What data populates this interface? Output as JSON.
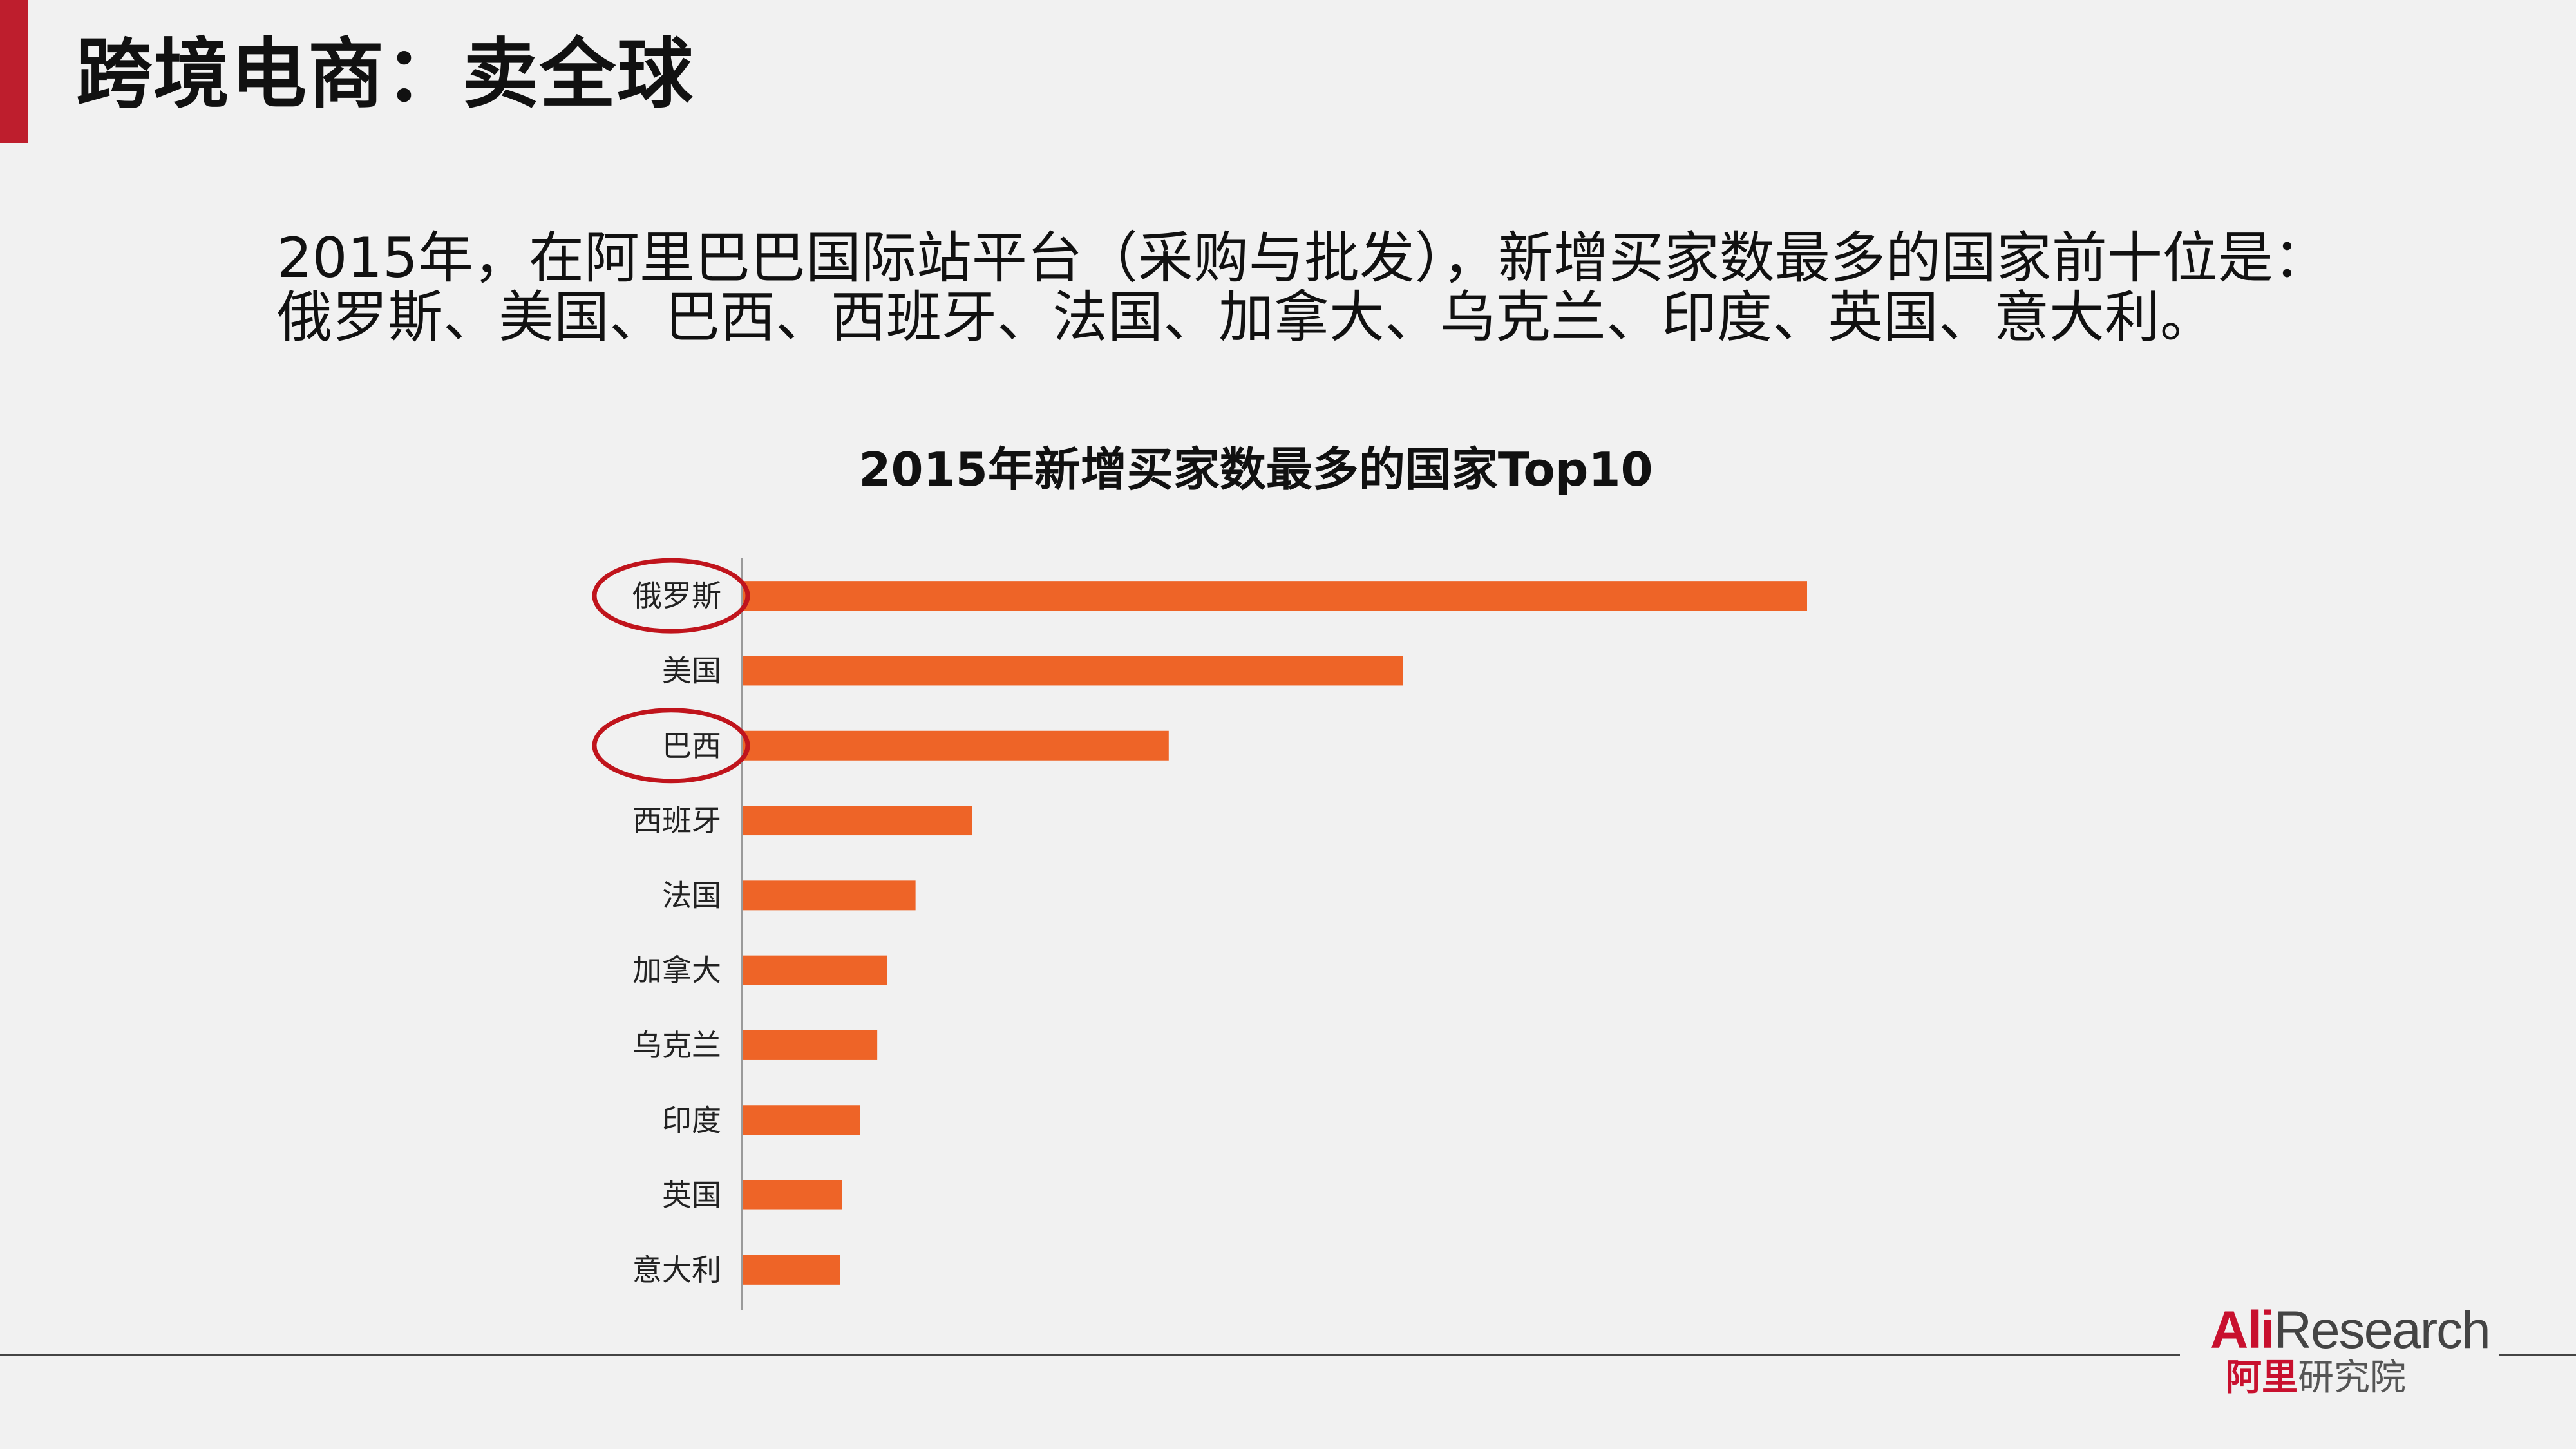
{
  "slide": {
    "title": "跨境电商：卖全球",
    "intro_line1": "2015年，在阿里巴巴国际站平台（采购与批发），新增买家数最多的国家前十位是：",
    "intro_line2": "俄罗斯、美国、巴西、西班牙、法国、加拿大、乌克兰、印度、英国、意大利。"
  },
  "chart_data": {
    "type": "bar",
    "orientation": "horizontal",
    "title": "2015年新增买家数最多的国家Top10",
    "xlabel": "",
    "ylabel": "",
    "categories": [
      "俄罗斯",
      "美国",
      "巴西",
      "西班牙",
      "法国",
      "加拿大",
      "乌克兰",
      "印度",
      "英国",
      "意大利"
    ],
    "values": [
      100,
      62,
      40,
      21.5,
      16.2,
      13.5,
      12.6,
      11,
      9.3,
      9.1
    ],
    "xlim": [
      0,
      100
    ],
    "value_axis_shown": false,
    "grid": false,
    "legend": "none",
    "bar_color": "#ee6427",
    "highlighted_categories": [
      "俄罗斯",
      "巴西"
    ],
    "highlight_color": "#c0141c"
  },
  "footer": {
    "logo_ali": "Ali",
    "logo_research": "Research",
    "logo_cn_red": "阿里",
    "logo_cn_grey": "研究院"
  },
  "colors": {
    "accent": "#be1e2d",
    "background": "#f1f1f1",
    "bar": "#ee6427"
  }
}
